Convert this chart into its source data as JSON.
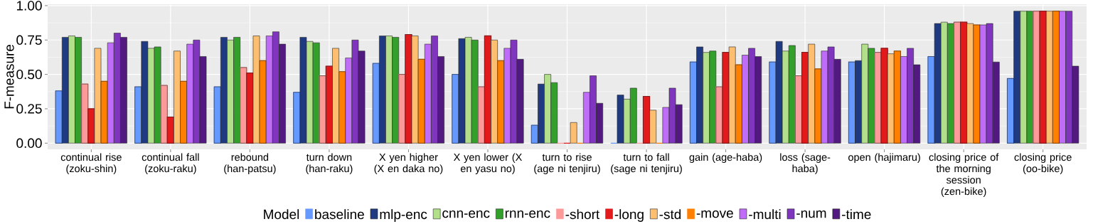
{
  "chart_data": {
    "type": "bar",
    "ylabel": "F-measure",
    "legend_title": "Model",
    "legend": "bottom",
    "grid": true,
    "categories": [
      "continual rise (zoku-shin)",
      "continual fall (zoku-raku)",
      "rebound (han-patsu)",
      "turn down (han-raku)",
      "X yen higher (X en daka no)",
      "X yen lower (X en yasu no)",
      "turn to rise (age ni tenjiru)",
      "turn to fall (sage ni tenjiru)",
      "gain (age-haba)",
      "loss (sage-haba)",
      "open (hajimaru)",
      "closing price of the morning session (zen-bike)",
      "closing price (oo-bike)"
    ],
    "ylim": [
      -0.045,
      1.01
    ],
    "yticks": [
      {
        "value": 0,
        "label": "0.00"
      },
      {
        "value": 0.25,
        "label": "0.25"
      },
      {
        "value": 0.5,
        "label": "0.50"
      },
      {
        "value": 0.75,
        "label": "0.75"
      },
      {
        "value": 1,
        "label": "1.00"
      }
    ],
    "series": [
      {
        "name": "baseline",
        "color": "#6699ff",
        "values": [
          0.38,
          0.41,
          0.41,
          0.37,
          0.58,
          0.5,
          0.13,
          0,
          0.59,
          0.59,
          0.59,
          0.63,
          0.47
        ]
      },
      {
        "name": "mlp-enc",
        "color": "#1f3a80",
        "values": [
          0.77,
          0.74,
          0.77,
          0.77,
          0.78,
          0.76,
          0.43,
          0.35,
          0.7,
          0.74,
          0.6,
          0.87,
          0.96
        ]
      },
      {
        "name": "cnn-enc",
        "color": "#b2df8a",
        "values": [
          0.78,
          0.69,
          0.75,
          0.74,
          0.78,
          0.77,
          0.5,
          0.32,
          0.66,
          0.67,
          0.72,
          0.88,
          0.96
        ]
      },
      {
        "name": "rnn-enc",
        "color": "#33a02c",
        "values": [
          0.77,
          0.7,
          0.77,
          0.73,
          0.77,
          0.75,
          0.44,
          0.4,
          0.67,
          0.71,
          0.69,
          0.87,
          0.96
        ]
      },
      {
        "name": "-short",
        "color": "#fb9a99",
        "values": [
          0.43,
          0.42,
          0.55,
          0.49,
          0.5,
          0.41,
          0,
          0,
          0.41,
          0.49,
          0.66,
          0.88,
          0.96
        ]
      },
      {
        "name": "-long",
        "color": "#e31a1c",
        "values": [
          0.25,
          0.19,
          0.51,
          0.56,
          0.79,
          0.78,
          0,
          0.34,
          0.66,
          0.66,
          0.69,
          0.88,
          0.96
        ]
      },
      {
        "name": "-std",
        "color": "#fdbf6f",
        "values": [
          0.69,
          0.67,
          0.78,
          0.69,
          0.78,
          0.75,
          0.15,
          0.24,
          0.7,
          0.72,
          0.65,
          0.87,
          0.96
        ]
      },
      {
        "name": "-move",
        "color": "#ff7f00",
        "values": [
          0.45,
          0.45,
          0.6,
          0.52,
          0.61,
          0.6,
          0,
          0,
          0.57,
          0.54,
          0.67,
          0.86,
          0.96
        ]
      },
      {
        "name": "-multi",
        "color": "#bf6cf8",
        "values": [
          0.73,
          0.72,
          0.78,
          0.62,
          0.72,
          0.69,
          0.37,
          0.26,
          0.64,
          0.67,
          0.63,
          0.86,
          0.96
        ]
      },
      {
        "name": "-num",
        "color": "#7f35bd",
        "values": [
          0.8,
          0.75,
          0.81,
          0.75,
          0.78,
          0.75,
          0.49,
          0.4,
          0.69,
          0.7,
          0.69,
          0.87,
          0.96
        ]
      },
      {
        "name": "-time",
        "color": "#521a80",
        "values": [
          0.77,
          0.63,
          0.72,
          0.67,
          0.63,
          0.61,
          0.29,
          0.28,
          0.63,
          0.61,
          0.57,
          0.59,
          0.56
        ]
      }
    ]
  }
}
